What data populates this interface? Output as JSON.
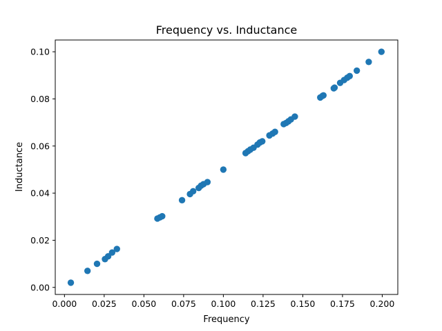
{
  "chart_data": {
    "type": "scatter",
    "title": "Frequency vs. Inductance",
    "xlabel": "Frequency",
    "ylabel": "Inductance",
    "xlim": [
      -0.0058,
      0.2098
    ],
    "ylim": [
      -0.003,
      0.105
    ],
    "xticks": [
      0.0,
      0.025,
      0.05,
      0.075,
      0.1,
      0.125,
      0.15,
      0.175,
      0.2
    ],
    "xtick_labels": [
      "0.000",
      "0.025",
      "0.050",
      "0.075",
      "0.100",
      "0.125",
      "0.150",
      "0.175",
      "0.200"
    ],
    "yticks": [
      0.0,
      0.02,
      0.04,
      0.06,
      0.08,
      0.1
    ],
    "ytick_labels": [
      "0.00",
      "0.02",
      "0.04",
      "0.06",
      "0.08",
      "0.10"
    ],
    "grid": false,
    "marker_color": "#1f77b4",
    "points": [
      [
        0.004,
        0.002
      ],
      [
        0.0145,
        0.007
      ],
      [
        0.0205,
        0.01
      ],
      [
        0.0255,
        0.012
      ],
      [
        0.0275,
        0.0132
      ],
      [
        0.03,
        0.0148
      ],
      [
        0.033,
        0.0163
      ],
      [
        0.0585,
        0.0292
      ],
      [
        0.06,
        0.0297
      ],
      [
        0.0615,
        0.0302
      ],
      [
        0.074,
        0.037
      ],
      [
        0.079,
        0.0396
      ],
      [
        0.081,
        0.0408
      ],
      [
        0.0845,
        0.0422
      ],
      [
        0.086,
        0.0432
      ],
      [
        0.0875,
        0.0438
      ],
      [
        0.09,
        0.0447
      ],
      [
        0.1,
        0.05
      ],
      [
        0.114,
        0.057
      ],
      [
        0.1155,
        0.0578
      ],
      [
        0.117,
        0.0585
      ],
      [
        0.119,
        0.0593
      ],
      [
        0.1215,
        0.0606
      ],
      [
        0.123,
        0.0615
      ],
      [
        0.1245,
        0.062
      ],
      [
        0.129,
        0.0645
      ],
      [
        0.131,
        0.0653
      ],
      [
        0.1325,
        0.066
      ],
      [
        0.138,
        0.0693
      ],
      [
        0.1395,
        0.0698
      ],
      [
        0.141,
        0.0705
      ],
      [
        0.1425,
        0.0713
      ],
      [
        0.145,
        0.0725
      ],
      [
        0.161,
        0.0806
      ],
      [
        0.1625,
        0.0813
      ],
      [
        0.163,
        0.0815
      ],
      [
        0.1695,
        0.0845
      ],
      [
        0.17,
        0.0848
      ],
      [
        0.1735,
        0.0868
      ],
      [
        0.176,
        0.088
      ],
      [
        0.178,
        0.089
      ],
      [
        0.1795,
        0.0897
      ],
      [
        0.184,
        0.092
      ],
      [
        0.1915,
        0.0957
      ],
      [
        0.1995,
        0.1
      ]
    ]
  }
}
